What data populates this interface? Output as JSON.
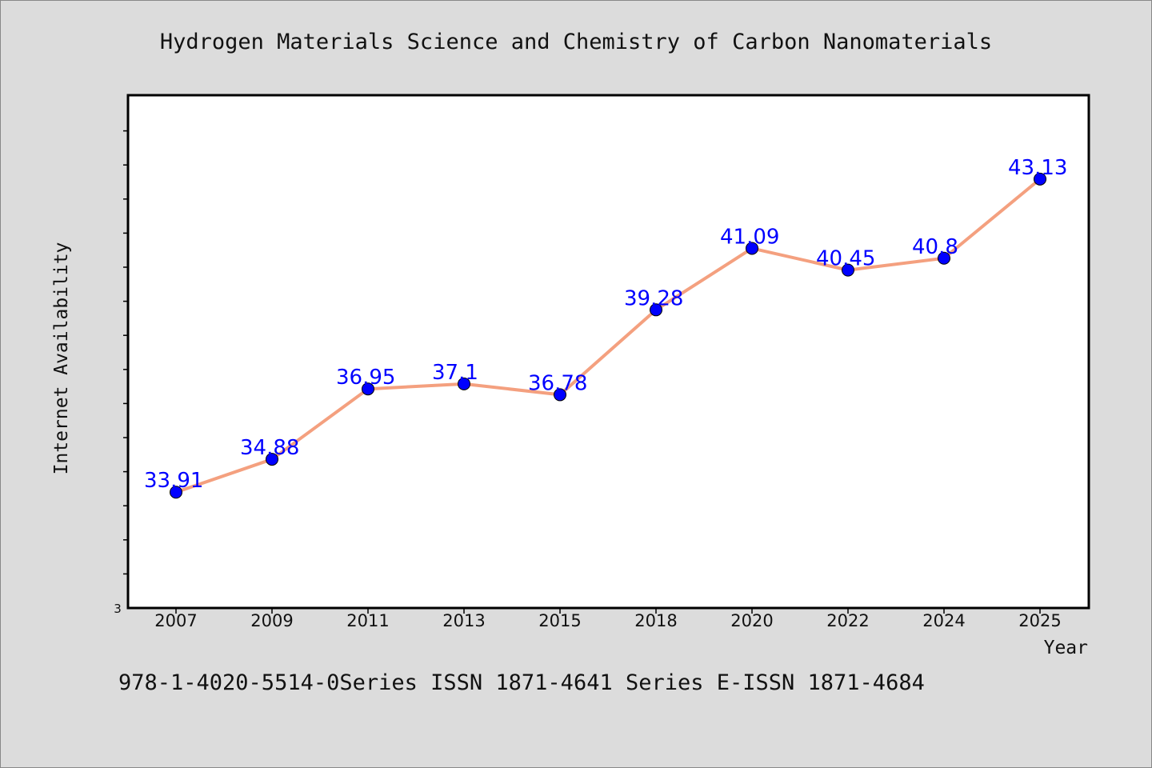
{
  "chart_data": {
    "type": "line",
    "title": "Hydrogen Materials Science and Chemistry of Carbon Nanomaterials",
    "xlabel": "Year",
    "ylabel": "Internet Availability",
    "footer": "978-1-4020-5514-0Series ISSN 1871-4641 Series E-ISSN 1871-4684",
    "y_min_tick_label": "3",
    "categories": [
      "2007",
      "2009",
      "2011",
      "2013",
      "2015",
      "2018",
      "2020",
      "2022",
      "2024",
      "2025"
    ],
    "series": [
      {
        "values": [
          33.91,
          34.88,
          36.95,
          37.1,
          36.78,
          39.28,
          41.09,
          40.45,
          40.8,
          43.13
        ],
        "labels": [
          "33.91",
          "34.88",
          "36.95",
          "37.1",
          "36.78",
          "39.28",
          "41.09",
          "40.45",
          "40.8",
          "43.13"
        ]
      }
    ],
    "ylim": [
      30.5,
      45.6
    ],
    "grid": false,
    "legend": "none",
    "colors": {
      "line": "#f4a07f",
      "marker": "#0000ff",
      "data_label": "#0000ff",
      "background": "#dcdcdc",
      "plot_background": "#ffffff"
    }
  }
}
